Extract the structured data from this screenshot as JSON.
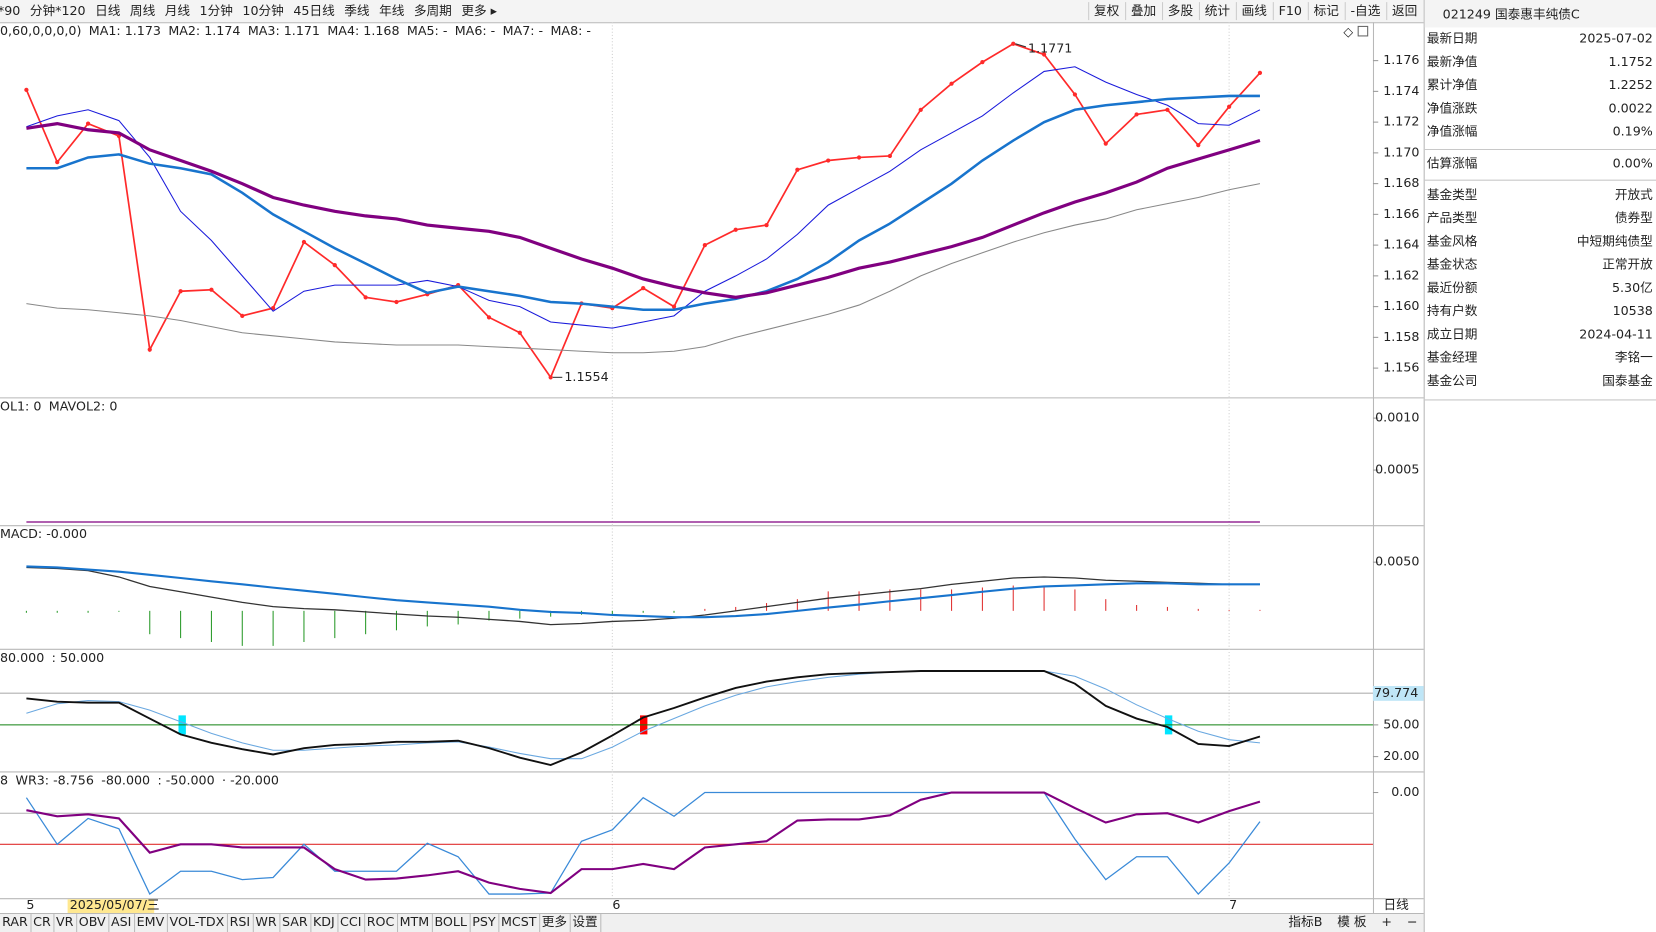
{
  "toolbar": {
    "periods": [
      "*90",
      "分钟*120",
      "日线",
      "周线",
      "月线",
      "1分钟",
      "10分钟",
      "45日线",
      "季线",
      "年线",
      "多周期",
      "更多 ▸"
    ],
    "active_period": "日线",
    "active_color": "#e00000",
    "tools": [
      "复权",
      "叠加",
      "多股",
      "统计",
      "画线",
      "F10",
      "标记",
      "-自选",
      "返回"
    ]
  },
  "chart_data": [
    {
      "type": "line",
      "legend": [
        {
          "text": "0,60,0,0,0,0)",
          "color": "#222222"
        },
        {
          "text": "MA1: 1.173",
          "color": "#1a1adb"
        },
        {
          "text": "MA2: 1.174",
          "color": "#1874cd"
        },
        {
          "text": "MA3: 1.171",
          "color": "#800080"
        },
        {
          "text": "MA4: 1.168",
          "color": "#888888"
        },
        {
          "text": "MA5: -",
          "color": "#009000"
        },
        {
          "text": "MA6: -",
          "color": "#00c8d8"
        },
        {
          "text": "MA7: -",
          "color": "#555555"
        },
        {
          "text": "MA8: -",
          "color": "#2d6ed8"
        }
      ],
      "categories": [
        "5",
        null,
        null,
        null,
        null,
        null,
        null,
        null,
        null,
        null,
        null,
        null,
        null,
        null,
        null,
        null,
        null,
        null,
        null,
        "6",
        null,
        null,
        null,
        null,
        null,
        null,
        null,
        null,
        null,
        null,
        null,
        null,
        null,
        null,
        null,
        null,
        null,
        null,
        null,
        "7",
        null
      ],
      "cursor_label": "2025/05/07/三",
      "max_label": "1.1771",
      "min_label": "1.1554",
      "ylim": [
        1.1541,
        1.1785
      ],
      "yticks": [
        1.156,
        1.158,
        {
          "value": 1.16,
          "label": "1.160"
        },
        1.162,
        1.164,
        1.166,
        1.168,
        {
          "value": 1.17,
          "label": "1.170"
        },
        1.172,
        1.174,
        1.176
      ],
      "series": [
        {
          "color": "#ff2a2a",
          "markers": true,
          "values": [
            1.1741,
            1.1694,
            1.1719,
            1.1711,
            1.1572,
            1.161,
            1.1611,
            1.1594,
            1.1599,
            1.1642,
            1.1627,
            1.1606,
            1.1603,
            1.1608,
            1.1614,
            1.1593,
            1.1583,
            1.1554,
            1.1602,
            1.1599,
            1.1612,
            1.16,
            1.164,
            1.165,
            1.1653,
            1.1689,
            1.1695,
            1.1697,
            1.1698,
            1.1728,
            1.1745,
            1.1759,
            1.1771,
            1.1764,
            1.1738,
            1.1706,
            1.1725,
            1.1728,
            1.1705,
            1.173,
            1.1752
          ]
        },
        {
          "color": "#1a1adb",
          "values": [
            1.1717,
            1.1724,
            1.1728,
            1.1721,
            1.1697,
            1.1662,
            1.1643,
            1.162,
            1.1597,
            1.161,
            1.1614,
            1.1614,
            1.1614,
            1.1617,
            1.1613,
            1.1604,
            1.16,
            1.159,
            1.1588,
            1.1586,
            1.159,
            1.1594,
            1.161,
            1.162,
            1.1631,
            1.1647,
            1.1666,
            1.1677,
            1.1688,
            1.1702,
            1.1713,
            1.1724,
            1.1739,
            1.1753,
            1.1756,
            1.1746,
            1.1738,
            1.1731,
            1.1719,
            1.1718,
            1.1728
          ]
        },
        {
          "color": "#1874cd",
          "values": [
            1.169,
            1.169,
            1.1697,
            1.1699,
            1.1693,
            1.169,
            1.1686,
            1.1674,
            1.166,
            1.1649,
            1.1638,
            1.1628,
            1.1618,
            1.1609,
            1.1613,
            1.161,
            1.1607,
            1.1603,
            1.1602,
            1.16,
            1.1598,
            1.1598,
            1.1602,
            1.1605,
            1.161,
            1.1618,
            1.1629,
            1.1643,
            1.1654,
            1.1667,
            1.168,
            1.1695,
            1.1708,
            1.172,
            1.1728,
            1.1731,
            1.1733,
            1.1735,
            1.1736,
            1.1737,
            1.1737
          ]
        },
        {
          "color": "#800080",
          "values": [
            1.1716,
            1.1719,
            1.1715,
            1.1713,
            1.1702,
            1.1695,
            1.1688,
            1.168,
            1.1671,
            1.1666,
            1.1662,
            1.1659,
            1.1657,
            1.1653,
            1.1651,
            1.1649,
            1.1645,
            1.1638,
            1.1631,
            1.1625,
            1.1618,
            1.1613,
            1.1609,
            1.1606,
            1.1609,
            1.1614,
            1.1619,
            1.1625,
            1.1629,
            1.1634,
            1.1639,
            1.1645,
            1.1653,
            1.1661,
            1.1668,
            1.1674,
            1.1681,
            1.169,
            1.1696,
            1.1702,
            1.1708
          ]
        },
        {
          "color": "#888888",
          "values": [
            1.1602,
            1.1599,
            1.1598,
            1.1596,
            1.1594,
            1.1591,
            1.1587,
            1.1583,
            1.1581,
            1.1579,
            1.1577,
            1.1576,
            1.1575,
            1.1575,
            1.1575,
            1.1574,
            1.1573,
            1.1572,
            1.1571,
            1.157,
            1.157,
            1.1571,
            1.1574,
            1.158,
            1.1585,
            1.159,
            1.1595,
            1.1601,
            1.161,
            1.162,
            1.1628,
            1.1635,
            1.1642,
            1.1648,
            1.1653,
            1.1657,
            1.1663,
            1.1667,
            1.1671,
            1.1676,
            1.168
          ]
        }
      ]
    },
    {
      "type": "line",
      "legend": [
        {
          "text": "OL1: 0",
          "color": "#1874cd"
        },
        {
          "text": "MAVOL2: 0",
          "color": "#800080"
        }
      ],
      "ylim": [
        -3e-05,
        0.0012
      ],
      "yticks": [
        {
          "value": 0.0005,
          "label": "0.0005"
        },
        {
          "value": 0.001,
          "label": "0.0010"
        }
      ],
      "series": [
        {
          "color": "#800080",
          "values": [
            0,
            0,
            0,
            0,
            0,
            0,
            0,
            0,
            0,
            0,
            0,
            0,
            0,
            0,
            0,
            0,
            0,
            0,
            0,
            0,
            0,
            0,
            0,
            0,
            0,
            0,
            0,
            0,
            0,
            0,
            0,
            0,
            0,
            0,
            0,
            0,
            0,
            0,
            0,
            0,
            0
          ]
        }
      ]
    },
    {
      "type": "line",
      "legend": [
        {
          "text": "MACD: -0.000",
          "color": "#222222"
        }
      ],
      "ylim": [
        -0.0039,
        0.0088
      ],
      "yticks": [
        {
          "value": 0.005,
          "label": "0.0050"
        }
      ],
      "series": [
        {
          "kind": "bar",
          "color_up": "#e03030",
          "color_down": "#2a9a2a",
          "values": [
            -0.0002,
            -0.0002,
            -0.0002,
            -0.0001,
            -0.0024,
            -0.0028,
            -0.0032,
            -0.0036,
            -0.0036,
            -0.0032,
            -0.0028,
            -0.0024,
            -0.002,
            -0.0016,
            -0.0014,
            -0.001,
            -0.0008,
            -0.0006,
            -0.0004,
            -0.0004,
            -0.0002,
            -0.0002,
            0.0002,
            0.0004,
            0.0008,
            0.0012,
            0.002,
            0.002,
            0.0022,
            0.0022,
            0.0022,
            0.0024,
            0.0026,
            0.0026,
            0.0022,
            0.0012,
            0.0006,
            0.0004,
            0.0002,
            0.0001,
            0.0001
          ]
        },
        {
          "color": "#333333",
          "values": [
            0.00446,
            0.00435,
            0.00413,
            0.00348,
            0.0025,
            0.00196,
            0.00141,
            0.00087,
            0.00043,
            0.00022,
            0.00011,
            -0.00011,
            -0.00033,
            -0.00054,
            -0.00065,
            -0.00087,
            -0.00109,
            -0.00141,
            -0.0013,
            -0.00109,
            -0.00098,
            -0.00076,
            -0.00043,
            0,
            0.00043,
            0.00087,
            0.0013,
            0.00163,
            0.00196,
            0.00228,
            0.00272,
            0.00304,
            0.00337,
            0.00348,
            0.00337,
            0.00315,
            0.00304,
            0.00293,
            0.00283,
            0.00272,
            0.00272
          ]
        },
        {
          "color": "#1874cd",
          "values": [
            0.00457,
            0.00446,
            0.00424,
            0.00402,
            0.0037,
            0.00337,
            0.00304,
            0.00272,
            0.00239,
            0.00207,
            0.00174,
            0.00141,
            0.00109,
            0.00087,
            0.00065,
            0.00043,
            0.00011,
            -0.00011,
            -0.00022,
            -0.00043,
            -0.00054,
            -0.00065,
            -0.00065,
            -0.00054,
            -0.00033,
            0,
            0.00033,
            0.00065,
            0.00098,
            0.0013,
            0.00163,
            0.00196,
            0.00228,
            0.0025,
            0.00261,
            0.00272,
            0.00283,
            0.00283,
            0.00272,
            0.00272,
            0.00272
          ]
        }
      ]
    },
    {
      "type": "line",
      "legend": [
        {
          "text": "80.000",
          "color": "#888888"
        },
        {
          "text": ": 50.000",
          "color": "#007000"
        }
      ],
      "ylim": [
        6,
        122
      ],
      "yticks": [
        {
          "value": 20,
          "label": "20.00"
        },
        {
          "value": 50,
          "label": "50.00"
        },
        {
          "value": 80,
          "label": "80.00"
        }
      ],
      "current": 79.774,
      "hlines": [
        {
          "value": 80,
          "color": "#b0b0b0"
        },
        {
          "value": 50,
          "color": "#108010"
        }
      ],
      "series": [
        {
          "color": "#6aa8e0",
          "values": [
            61,
            70,
            73,
            72,
            64,
            53,
            42,
            33,
            26,
            26,
            28,
            30,
            31,
            33,
            34,
            29,
            23,
            18,
            18,
            29,
            44,
            56,
            68,
            78,
            86,
            91,
            95,
            98,
            100,
            101,
            101,
            101,
            101,
            101,
            96,
            84,
            69,
            56,
            44,
            36,
            33
          ]
        },
        {
          "color": "#111111",
          "values": [
            75,
            72,
            71,
            71,
            56,
            41,
            33,
            27,
            22,
            28,
            31,
            32,
            34,
            34,
            35,
            28,
            19,
            12,
            24,
            40,
            57,
            66,
            76,
            85,
            91,
            95,
            98,
            99,
            100,
            101,
            101,
            101,
            101,
            101,
            89,
            68,
            56,
            48,
            32,
            30,
            39
          ]
        }
      ]
    },
    {
      "type": "line",
      "legend": [
        {
          "text": "8",
          "color": "#1874cd"
        },
        {
          "text": "WR3: -8.756",
          "color": "#222222"
        },
        {
          "text": "-80.000",
          "color": "#999999"
        },
        {
          "text": ": -50.000",
          "color": "#e00000"
        },
        {
          "text": "· -20.000",
          "color": "#999999"
        }
      ],
      "ylim": [
        -102,
        20.4
      ],
      "yticks": [
        {
          "value": 0,
          "label": "0.00"
        }
      ],
      "hlines": [
        {
          "value": -20,
          "color": "#b0b0b0"
        },
        {
          "value": -50,
          "color": "#e03030"
        }
      ],
      "series": [
        {
          "color": "#3a8ad8",
          "values": [
            -5,
            -50,
            -25,
            -35,
            -98,
            -76,
            -76,
            -84,
            -82,
            -50,
            -76,
            -76,
            -76,
            -49,
            -62,
            -98,
            -98,
            -97,
            -47,
            -36,
            -5,
            -23,
            0,
            0,
            0,
            0,
            0,
            0,
            0,
            0,
            0,
            0,
            0,
            0,
            -45,
            -84,
            -62,
            -62,
            -98,
            -68,
            -28
          ]
        },
        {
          "color": "#800080",
          "values": [
            -17,
            -23,
            -21,
            -25,
            -58,
            -50,
            -50,
            -53,
            -53,
            -53,
            -74,
            -84,
            -83,
            -80,
            -76,
            -87,
            -93,
            -97,
            -74,
            -74,
            -69,
            -74,
            -53,
            -50,
            -47,
            -27,
            -26,
            -26,
            -22,
            -7,
            0,
            0,
            0,
            0,
            -15,
            -29,
            -21,
            -20,
            -29,
            -18,
            -8.756
          ]
        }
      ]
    }
  ],
  "axis_period": "日线",
  "tabs": {
    "items": [
      "RAR",
      "CR",
      "VR",
      "OBV",
      "ASI",
      "EMV",
      "VOL-TDX",
      "RSI",
      "WR",
      "SAR",
      "KDJ",
      "CCI",
      "ROC",
      "MTM",
      "BOLL",
      "PSY",
      "MCST",
      "更多",
      "设置"
    ],
    "highlight": "设置",
    "highlight_color": "#e00000",
    "right": [
      "指标B",
      "模 板",
      "+",
      "−"
    ]
  },
  "info": {
    "title": "021249 国泰惠丰纯债C",
    "groups": [
      [
        {
          "label": "最新日期",
          "value": "2025-07-02",
          "color": "#222222"
        },
        {
          "label": "最新净值",
          "value": "1.1752",
          "color": "#e00000"
        },
        {
          "label": "累计净值",
          "value": "1.2252",
          "color": "#222222"
        },
        {
          "label": "净值涨跌",
          "value": "0.0022",
          "color": "#e00000"
        },
        {
          "label": "净值涨幅",
          "value": "0.19%",
          "color": "#e00000"
        }
      ],
      [
        {
          "label": "估算涨幅",
          "value": "0.00%",
          "color": "#222222"
        }
      ],
      [
        {
          "label": "基金类型",
          "value": "开放式",
          "color": "#222222"
        },
        {
          "label": "产品类型",
          "value": "债券型",
          "color": "#222222"
        },
        {
          "label": "基金风格",
          "value": "中短期纯债型",
          "color": "#222222"
        },
        {
          "label": "基金状态",
          "value": "正常开放",
          "color": "#222222"
        },
        {
          "label": "最近份额",
          "value": "5.30亿",
          "color": "#222222"
        },
        {
          "label": "持有户数",
          "value": "10538",
          "color": "#222222"
        },
        {
          "label": "成立日期",
          "value": "2024-04-11",
          "color": "#222222"
        },
        {
          "label": "基金经理",
          "value": "李铭一",
          "color": "#222222"
        },
        {
          "label": "基金公司",
          "value": "国泰基金",
          "color": "#222222"
        }
      ]
    ]
  }
}
